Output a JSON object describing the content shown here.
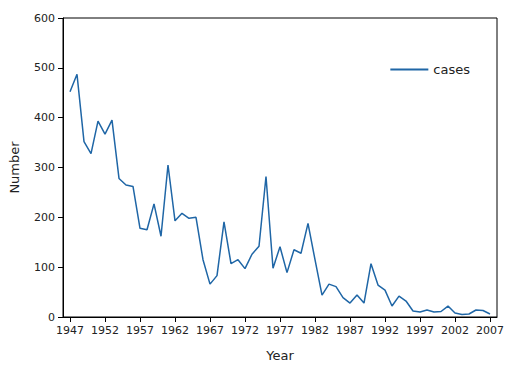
{
  "chart_data": {
    "type": "line",
    "x_label": "Year",
    "y_label": "Number",
    "x": [
      1947,
      1948,
      1949,
      1950,
      1951,
      1952,
      1953,
      1954,
      1955,
      1956,
      1957,
      1958,
      1959,
      1960,
      1961,
      1962,
      1963,
      1964,
      1965,
      1966,
      1967,
      1968,
      1969,
      1970,
      1971,
      1972,
      1973,
      1974,
      1975,
      1976,
      1977,
      1978,
      1979,
      1980,
      1981,
      1982,
      1983,
      1984,
      1985,
      1986,
      1987,
      1988,
      1989,
      1990,
      1991,
      1992,
      1993,
      1994,
      1995,
      1996,
      1997,
      1998,
      1999,
      2000,
      2001,
      2002,
      2003,
      2004,
      2005,
      2006,
      2007
    ],
    "series": [
      {
        "name": "cases",
        "color": "#1f66a6",
        "values": [
          452,
          487,
          352,
          328,
          393,
          367,
          395,
          278,
          265,
          262,
          178,
          175,
          227,
          162,
          305,
          193,
          208,
          198,
          200,
          115,
          66,
          83,
          191,
          107,
          115,
          97,
          126,
          142,
          282,
          98,
          141,
          89,
          135,
          128,
          188,
          115,
          44,
          66,
          61,
          39,
          28,
          44,
          28,
          107,
          64,
          54,
          22,
          42,
          32,
          12,
          10,
          14,
          10,
          11,
          22,
          8,
          5,
          6,
          14,
          13,
          6
        ]
      }
    ],
    "xlim": [
      1946,
      2008
    ],
    "xticks": [
      1947,
      1952,
      1957,
      1962,
      1967,
      1972,
      1977,
      1982,
      1987,
      1992,
      1997,
      2002,
      2007
    ],
    "ylim": [
      0,
      600
    ],
    "yticks": [
      0,
      100,
      200,
      300,
      400,
      500,
      600
    ],
    "grid": false,
    "legend": "upper right"
  }
}
